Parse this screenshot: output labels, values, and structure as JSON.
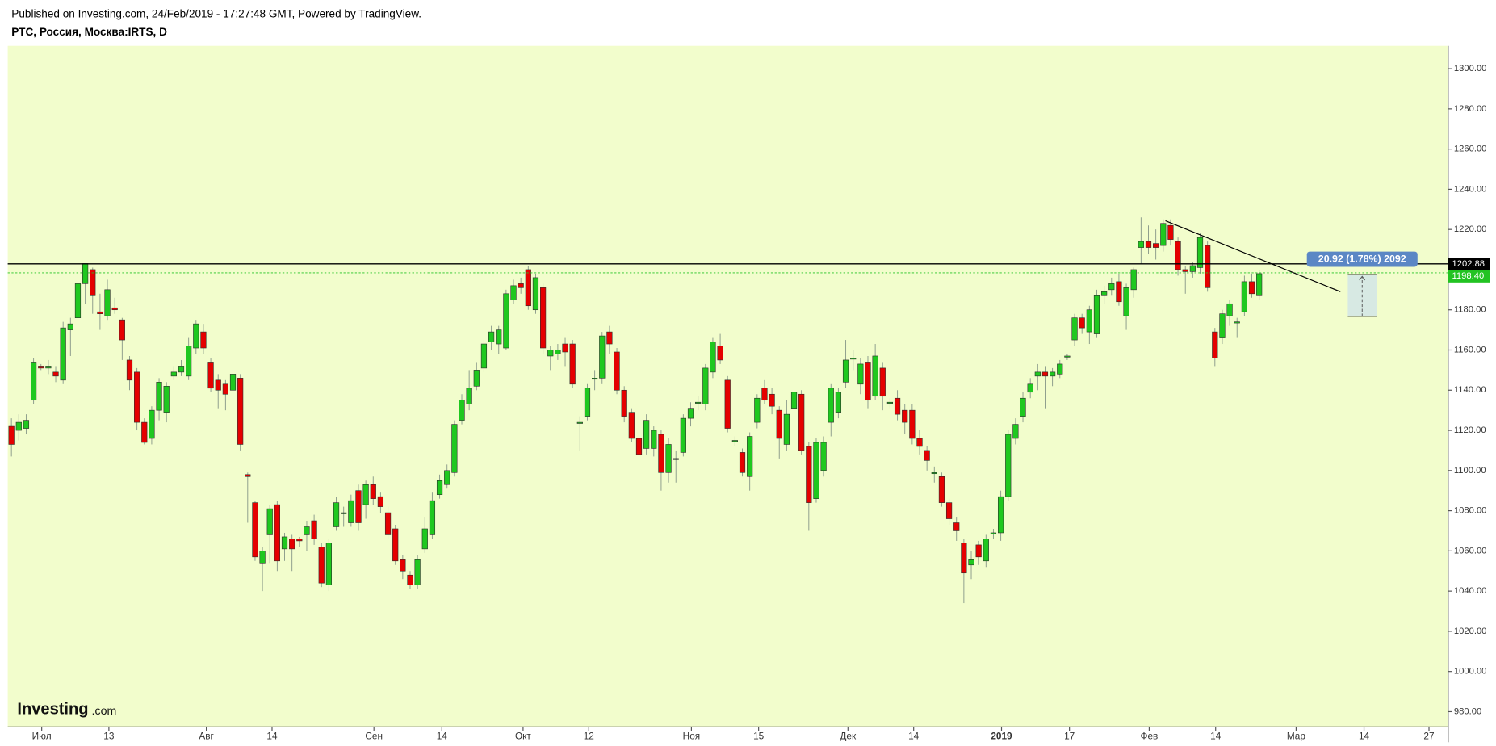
{
  "header": {
    "published": "Published on Investing.com, 24/Feb/2019 - 17:27:48 GMT, Powered by TradingView.",
    "symbol": "РТС, Россия, Москва:IRTS, D"
  },
  "logo": {
    "brand": "Investing",
    "suffix": ".com"
  },
  "chart_data": {
    "type": "candlestick",
    "up_color": "#1fc81f",
    "down_color": "#e50000",
    "background": "#f2fdcc",
    "open": [
      1122,
      1120,
      1121,
      1135,
      1152,
      1151,
      1149,
      1145,
      1170,
      1176,
      1193,
      1200,
      1179,
      1177,
      1181,
      1175,
      1155,
      1149,
      1124,
      1116,
      1130,
      1129,
      1147,
      1149,
      1147,
      1161,
      1169,
      1154,
      1145,
      1143,
      1140,
      1146,
      1098,
      1084,
      1054,
      1068,
      1083,
      1061,
      1066,
      1066,
      1068,
      1075,
      1062,
      1043,
      1072,
      1079,
      1074,
      1090,
      1083,
      1093,
      1087,
      1079,
      1071,
      1056,
      1048,
      1043,
      1061,
      1068,
      1088,
      1093,
      1099,
      1125,
      1133,
      1142,
      1151,
      1164,
      1163,
      1161,
      1185,
      1193,
      1200,
      1180,
      1191,
      1157,
      1158,
      1163,
      1163,
      1124,
      1127,
      1146,
      1146,
      1169,
      1159,
      1140,
      1129,
      1116,
      1111,
      1111,
      1118,
      1099,
      1106,
      1109,
      1126,
      1134,
      1133,
      1149,
      1162,
      1145,
      1115,
      1109,
      1097,
      1124,
      1141,
      1138,
      1130,
      1113,
      1131,
      1138,
      1112,
      1086,
      1100,
      1124,
      1129,
      1144,
      1156,
      1143,
      1154,
      1137,
      1151,
      1134,
      1136,
      1130,
      1130,
      1116,
      1110,
      1099,
      1097,
      1084,
      1074,
      1064,
      1053,
      1063,
      1055,
      1069,
      1069,
      1087,
      1116,
      1127,
      1139,
      1147,
      1149,
      1147,
      1148,
      1157,
      1165,
      1176,
      1169,
      1168,
      1187,
      1190,
      1194,
      1177,
      1190,
      1211,
      1214,
      1213,
      1212,
      1222,
      1214,
      1200,
      1199,
      1201,
      1212,
      1169,
      1166,
      1177,
      1174,
      1179,
      1194,
      1187
    ],
    "high": [
      1126,
      1128,
      1128,
      1156,
      1153,
      1155,
      1152,
      1174,
      1176,
      1197,
      1203,
      1201,
      1188,
      1195,
      1186,
      1176,
      1157,
      1151,
      1126,
      1132,
      1146,
      1144,
      1152,
      1155,
      1166,
      1175,
      1173,
      1156,
      1148,
      1145,
      1150,
      1148,
      1099,
      1085,
      1062,
      1083,
      1085,
      1069,
      1068,
      1067,
      1075,
      1078,
      1064,
      1066,
      1087,
      1082,
      1088,
      1093,
      1095,
      1097,
      1089,
      1082,
      1073,
      1058,
      1050,
      1058,
      1077,
      1089,
      1098,
      1103,
      1125,
      1138,
      1150,
      1154,
      1165,
      1172,
      1172,
      1190,
      1195,
      1196,
      1202,
      1198,
      1193,
      1162,
      1163,
      1166,
      1165,
      1127,
      1143,
      1150,
      1169,
      1172,
      1161,
      1142,
      1131,
      1118,
      1128,
      1122,
      1120,
      1116,
      1110,
      1128,
      1134,
      1137,
      1153,
      1166,
      1168,
      1147,
      1117,
      1111,
      1119,
      1138,
      1145,
      1141,
      1132,
      1135,
      1141,
      1140,
      1114,
      1116,
      1117,
      1143,
      1141,
      1165,
      1160,
      1156,
      1157,
      1163,
      1154,
      1136,
      1140,
      1133,
      1133,
      1120,
      1112,
      1102,
      1099,
      1086,
      1077,
      1066,
      1060,
      1065,
      1068,
      1071,
      1090,
      1120,
      1126,
      1139,
      1146,
      1153,
      1152,
      1151,
      1155,
      1158,
      1178,
      1178,
      1182,
      1190,
      1192,
      1196,
      1198,
      1193,
      1201,
      1226,
      1222,
      1220,
      1225,
      1225,
      1216,
      1202,
      1204,
      1218,
      1214,
      1171,
      1180,
      1185,
      1176,
      1197,
      1198,
      1200
    ],
    "low": [
      1107,
      1115,
      1118,
      1133,
      1150,
      1148,
      1144,
      1143,
      1157,
      1173,
      1183,
      1178,
      1170,
      1175,
      1178,
      1155,
      1140,
      1120,
      1113,
      1113,
      1125,
      1124,
      1145,
      1147,
      1145,
      1158,
      1158,
      1139,
      1131,
      1130,
      1137,
      1110,
      1074,
      1055,
      1040,
      1054,
      1050,
      1055,
      1050,
      1062,
      1060,
      1063,
      1042,
      1040,
      1070,
      1072,
      1072,
      1070,
      1076,
      1083,
      1079,
      1066,
      1053,
      1046,
      1041,
      1041,
      1059,
      1066,
      1086,
      1091,
      1097,
      1123,
      1130,
      1140,
      1149,
      1160,
      1158,
      1160,
      1183,
      1188,
      1180,
      1178,
      1158,
      1150,
      1155,
      1152,
      1141,
      1110,
      1125,
      1140,
      1143,
      1158,
      1138,
      1124,
      1114,
      1105,
      1108,
      1107,
      1090,
      1094,
      1094,
      1107,
      1122,
      1130,
      1130,
      1146,
      1153,
      1119,
      1112,
      1097,
      1090,
      1121,
      1133,
      1128,
      1106,
      1110,
      1127,
      1108,
      1070,
      1084,
      1097,
      1117,
      1126,
      1141,
      1150,
      1138,
      1131,
      1135,
      1130,
      1131,
      1125,
      1118,
      1113,
      1108,
      1100,
      1094,
      1082,
      1073,
      1065,
      1034,
      1046,
      1053,
      1052,
      1066,
      1065,
      1085,
      1113,
      1124,
      1136,
      1140,
      1131,
      1142,
      1146,
      1155,
      1162,
      1168,
      1163,
      1166,
      1183,
      1187,
      1182,
      1170,
      1186,
      1203,
      1208,
      1205,
      1209,
      1212,
      1197,
      1188,
      1196,
      1198,
      1189,
      1152,
      1163,
      1172,
      1166,
      1177,
      1186,
      1185
    ],
    "close": [
      1113,
      1124,
      1125,
      1154,
      1151,
      1152,
      1147,
      1171,
      1173,
      1193,
      1203,
      1187,
      1178,
      1190,
      1180,
      1165,
      1145,
      1124,
      1114,
      1130,
      1144,
      1142,
      1149,
      1152,
      1162,
      1173,
      1161,
      1141,
      1140,
      1138,
      1148,
      1113,
      1097,
      1057,
      1060,
      1081,
      1055,
      1067,
      1061,
      1065,
      1072,
      1066,
      1044,
      1064,
      1084,
      1079,
      1085,
      1074,
      1093,
      1086,
      1082,
      1068,
      1055,
      1050,
      1043,
      1056,
      1071,
      1085,
      1095,
      1100,
      1123,
      1135,
      1141,
      1150,
      1163,
      1169,
      1170,
      1188,
      1192,
      1191,
      1182,
      1196,
      1161,
      1160,
      1160,
      1159,
      1143,
      1124,
      1141,
      1146,
      1167,
      1163,
      1140,
      1127,
      1116,
      1108,
      1125,
      1120,
      1099,
      1113,
      1106,
      1126,
      1131,
      1134,
      1151,
      1164,
      1155,
      1121,
      1115,
      1099,
      1117,
      1136,
      1135,
      1132,
      1116,
      1128,
      1139,
      1110,
      1084,
      1114,
      1114,
      1141,
      1139,
      1155,
      1156,
      1153,
      1135,
      1157,
      1137,
      1134,
      1128,
      1124,
      1116,
      1112,
      1105,
      1099,
      1084,
      1076,
      1070,
      1049,
      1056,
      1057,
      1066,
      1069,
      1087,
      1118,
      1123,
      1136,
      1143,
      1149,
      1147,
      1149,
      1153,
      1157,
      1176,
      1171,
      1180,
      1187,
      1189,
      1193,
      1184,
      1191,
      1200,
      1214,
      1211,
      1211,
      1223,
      1215,
      1200,
      1199,
      1202,
      1216,
      1191,
      1156,
      1178,
      1183,
      1174,
      1194,
      1188,
      1198
    ],
    "xlim": [
      -0.5,
      194.6
    ],
    "xticks": [
      {
        "value": 4.1,
        "label": "Июл"
      },
      {
        "value": 13.2,
        "label": "13"
      },
      {
        "value": 26.4,
        "label": "Авг"
      },
      {
        "value": 35.3,
        "label": "14"
      },
      {
        "value": 49.1,
        "label": "Сен"
      },
      {
        "value": 58.3,
        "label": "14"
      },
      {
        "value": 69.3,
        "label": "Окт"
      },
      {
        "value": 78.2,
        "label": "12"
      },
      {
        "value": 92.1,
        "label": "Ноя"
      },
      {
        "value": 101.2,
        "label": "15"
      },
      {
        "value": 113.3,
        "label": "Дек"
      },
      {
        "value": 122.2,
        "label": "14"
      },
      {
        "value": 134.1,
        "label": "2019"
      },
      {
        "value": 143.3,
        "label": "17"
      },
      {
        "value": 154.1,
        "label": "Фев"
      },
      {
        "value": 163.1,
        "label": "14"
      },
      {
        "value": 174.0,
        "label": "Мар"
      },
      {
        "value": 183.2,
        "label": "14"
      },
      {
        "value": 192.0,
        "label": "27"
      }
    ],
    "ylim": [
      972.4,
      1311.4
    ],
    "yticks": [
      {
        "value": 980,
        "label": "980.00"
      },
      {
        "value": 1000,
        "label": "1000.00"
      },
      {
        "value": 1020,
        "label": "1020.00"
      },
      {
        "value": 1040,
        "label": "1040.00"
      },
      {
        "value": 1060,
        "label": "1060.00"
      },
      {
        "value": 1080,
        "label": "1080.00"
      },
      {
        "value": 1100,
        "label": "1100.00"
      },
      {
        "value": 1120,
        "label": "1120.00"
      },
      {
        "value": 1140,
        "label": "1140.00"
      },
      {
        "value": 1160,
        "label": "1160.00"
      },
      {
        "value": 1180,
        "label": "1180.00"
      },
      {
        "value": 1200,
        "label": "1200.00"
      },
      {
        "value": 1220,
        "label": "1220.00"
      },
      {
        "value": 1240,
        "label": "1240.00"
      },
      {
        "value": 1260,
        "label": "1260.00"
      },
      {
        "value": 1280,
        "label": "1280.00"
      },
      {
        "value": 1300,
        "label": "1300.00"
      }
    ],
    "hlines": [
      {
        "value": 1202.88,
        "label": "1202.88",
        "color": "#000000"
      },
      {
        "value": 1198.4,
        "label": "1198.40",
        "color": "#22c322"
      }
    ],
    "trendline": {
      "x": [
        156.3,
        180
      ],
      "y": [
        1224.3,
        1189
      ],
      "color": "#000000"
    },
    "measure": {
      "x": [
        181,
        184.9
      ],
      "y": [
        1197.6,
        1176.7
      ],
      "label": "20.92 (1.78%) 2092",
      "color": "#5b87c5"
    }
  }
}
